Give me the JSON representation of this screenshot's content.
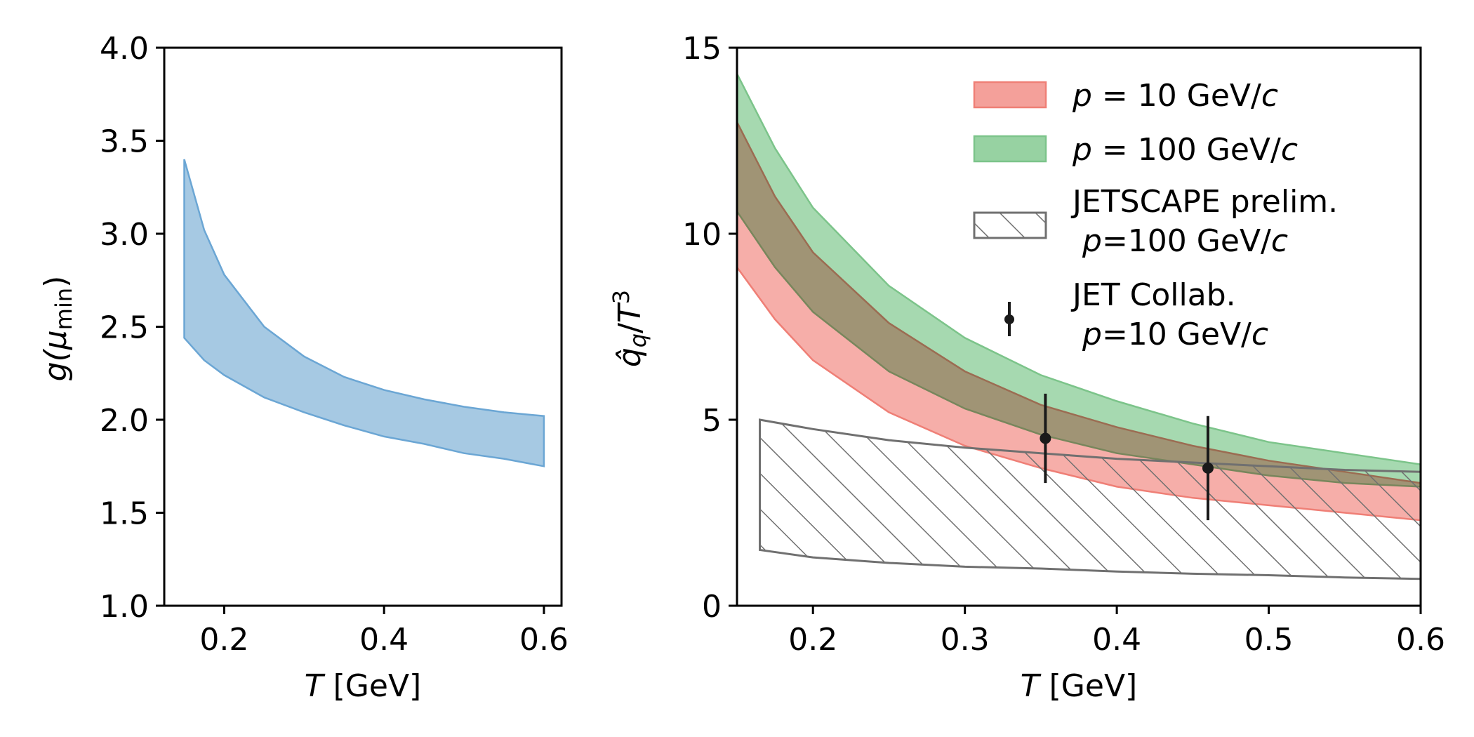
{
  "chart_data": [
    {
      "type": "area",
      "xlabel": "T [GeV]",
      "ylabel": "g(μmin)",
      "xlim": [
        0.125,
        0.622
      ],
      "ylim": [
        1.0,
        4.0
      ],
      "xticks": [
        0.2,
        0.4,
        0.6
      ],
      "xtick_labels": [
        "0.2",
        "0.4",
        "0.6"
      ],
      "yticks": [
        1.0,
        1.5,
        2.0,
        2.5,
        3.0,
        3.5,
        4.0
      ],
      "ytick_labels": [
        "1.0",
        "1.5",
        "2.0",
        "2.5",
        "3.0",
        "3.5",
        "4.0"
      ],
      "grid": false,
      "series": [
        {
          "color": "#7fb2d9",
          "band": {
            "x": [
              0.15,
              0.175,
              0.2,
              0.25,
              0.3,
              0.35,
              0.4,
              0.45,
              0.5,
              0.55,
              0.6
            ],
            "lower": [
              2.44,
              2.32,
              2.24,
              2.12,
              2.04,
              1.97,
              1.91,
              1.87,
              1.82,
              1.79,
              1.75
            ],
            "upper": [
              3.4,
              3.02,
              2.78,
              2.5,
              2.34,
              2.23,
              2.16,
              2.11,
              2.07,
              2.04,
              2.02
            ]
          }
        }
      ]
    },
    {
      "type": "area",
      "xlabel": "T [GeV]",
      "ylabel": "q̂q/T3",
      "xlim": [
        0.15,
        0.6
      ],
      "ylim": [
        0,
        15
      ],
      "xticks": [
        0.2,
        0.3,
        0.4,
        0.5,
        0.6
      ],
      "xtick_labels": [
        "0.2",
        "0.3",
        "0.4",
        "0.5",
        "0.6"
      ],
      "yticks": [
        0,
        5,
        10,
        15
      ],
      "ytick_labels": [
        "0",
        "5",
        "10",
        "15"
      ],
      "grid": false,
      "legend_position": "top-right",
      "series": [
        {
          "name": "p = 10 GeV/c",
          "color": "#f4a09a",
          "band": {
            "x": [
              0.15,
              0.175,
              0.2,
              0.25,
              0.3,
              0.35,
              0.4,
              0.45,
              0.5,
              0.55,
              0.6
            ],
            "lower": [
              9.1,
              7.7,
              6.6,
              5.2,
              4.3,
              3.7,
              3.2,
              2.9,
              2.7,
              2.5,
              2.3
            ],
            "upper": [
              13.0,
              11.0,
              9.5,
              7.6,
              6.3,
              5.4,
              4.8,
              4.3,
              3.9,
              3.6,
              3.3
            ]
          }
        },
        {
          "name": "p = 100 GeV/c",
          "color": "#97d2a2",
          "band": {
            "x": [
              0.15,
              0.175,
              0.2,
              0.25,
              0.3,
              0.35,
              0.4,
              0.45,
              0.5,
              0.55,
              0.6
            ],
            "lower": [
              10.6,
              9.1,
              7.9,
              6.3,
              5.3,
              4.6,
              4.1,
              3.8,
              3.5,
              3.3,
              3.2
            ],
            "upper": [
              14.3,
              12.3,
              10.7,
              8.6,
              7.2,
              6.2,
              5.5,
              4.9,
              4.4,
              4.1,
              3.8
            ]
          }
        },
        {
          "name": "JETSCAPE prelim.\n p=100 GeV/c",
          "color": "#707070",
          "hatch": true,
          "band": {
            "x": [
              0.165,
              0.2,
              0.25,
              0.3,
              0.35,
              0.4,
              0.45,
              0.5,
              0.55,
              0.6
            ],
            "lower": [
              1.5,
              1.3,
              1.15,
              1.05,
              1.0,
              0.92,
              0.86,
              0.82,
              0.76,
              0.72
            ],
            "upper": [
              5.0,
              4.75,
              4.45,
              4.25,
              4.1,
              3.95,
              3.85,
              3.75,
              3.65,
              3.6
            ]
          }
        },
        {
          "name": "JET Collab.\n p=10 GeV/c",
          "color": "#1a1a1a",
          "points": [
            {
              "x": 0.353,
              "y": 4.5,
              "lo": 3.3,
              "hi": 5.7
            },
            {
              "x": 0.46,
              "y": 3.7,
              "lo": 2.3,
              "hi": 5.1
            }
          ]
        }
      ]
    }
  ],
  "labels": {
    "left_xlabel_italic": "T",
    "left_xlabel_rest": " [GeV]",
    "left_ylabel_g": "g(",
    "left_ylabel_mu": "μ",
    "left_ylabel_sub": "min",
    "left_ylabel_close": ")",
    "right_xlabel_italic": "T",
    "right_xlabel_rest": " [GeV]",
    "right_ylabel_q": "q̂",
    "right_ylabel_sub": "q",
    "right_ylabel_slash": "/",
    "right_ylabel_T": "T",
    "right_ylabel_sup": "3"
  },
  "legend": {
    "red_p": "p",
    "red_rest": " = 10 GeV/",
    "red_c": "c",
    "green_p": "p",
    "green_rest": " = 100 GeV/",
    "green_c": "c",
    "jetscape_line1": "JETSCAPE prelim.",
    "jetscape_p": "p",
    "jetscape_rest": "=100 GeV/",
    "jetscape_c": "c",
    "jet_line1": "JET Collab.",
    "jet_p": "p",
    "jet_rest": "=10 GeV/",
    "jet_c": "c"
  }
}
